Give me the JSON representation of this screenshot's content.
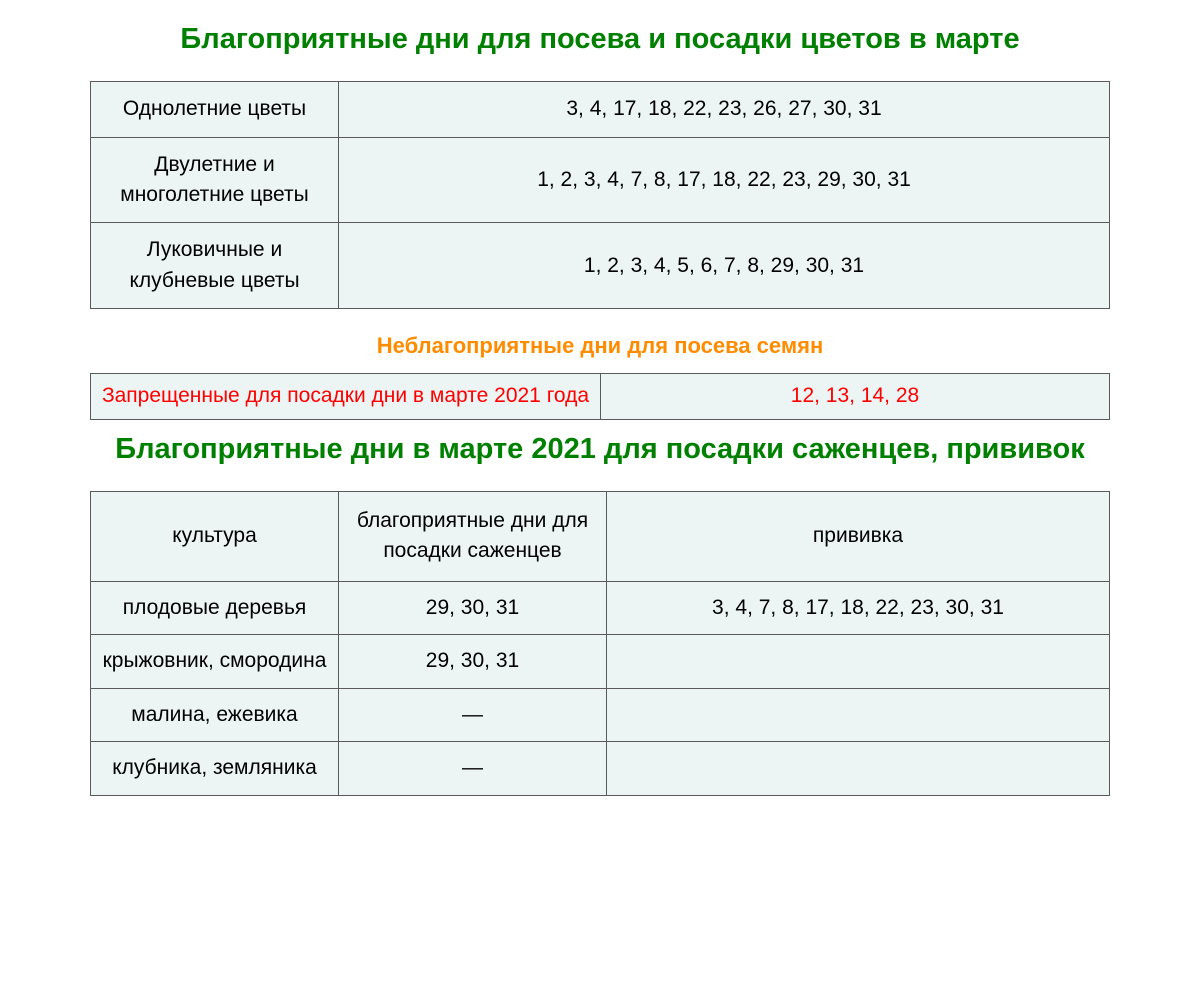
{
  "flowers": {
    "heading": "Благоприятные дни для посева и посадки цветов в марте",
    "table": {
      "bgcolor": "#ecf4f4",
      "border_color": "#5a5a5a",
      "rows": [
        {
          "label": "Однолетние цветы",
          "days": "3, 4, 17, 18, 22, 23, 26, 27, 30, 31"
        },
        {
          "label": "Двулетние и многолетние цветы",
          "days": "1, 2, 3, 4, 7, 8, 17, 18, 22, 23, 29, 30, 31"
        },
        {
          "label": "Луковичные и клубневые цветы",
          "days": "1, 2, 3, 4, 5, 6, 7, 8, 29, 30, 31"
        }
      ]
    }
  },
  "unfavorable": {
    "heading": "Неблагоприятные дни для посева семян",
    "heading_color": "#ff8c00",
    "text_color": "#ff0000",
    "label": "Запрещенные для посадки дни в марте 2021 года",
    "days": "12, 13, 14, 28"
  },
  "seedlings": {
    "heading": "Благоприятные дни в марте 2021 для посадки саженцев, прививок",
    "headers": {
      "culture": "культура",
      "planting": "благоприятные дни для посадки саженцев",
      "grafting": "прививка"
    },
    "rows": [
      {
        "culture": "плодовые деревья",
        "planting": "29, 30, 31",
        "grafting": "3, 4, 7, 8, 17, 18, 22, 23, 30, 31"
      },
      {
        "culture": "крыжовник, смородина",
        "planting": "29, 30, 31",
        "grafting": ""
      },
      {
        "culture": "малина, ежевика",
        "planting": "—",
        "grafting": ""
      },
      {
        "culture": "клубника, земляника",
        "planting": "—",
        "grafting": ""
      }
    ]
  },
  "heading_color": "#008000",
  "font_family": "Arial",
  "body_bg": "#ffffff"
}
